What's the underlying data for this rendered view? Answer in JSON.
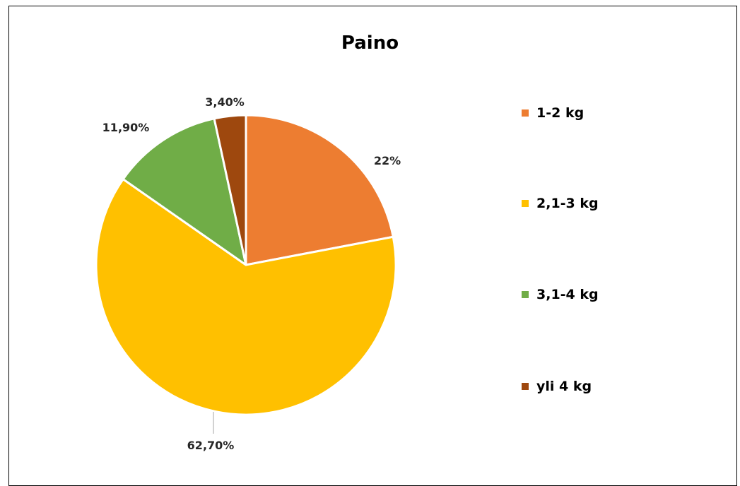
{
  "chart_data": {
    "type": "pie",
    "title": "Paino",
    "slices": [
      {
        "category": "1-2 kg",
        "value": 22,
        "label": "22%",
        "color": "#ED7D31"
      },
      {
        "category": "2,1-3 kg",
        "value": 62.7,
        "label": "62,70%",
        "color": "#FFC000"
      },
      {
        "category": "3,1-4 kg",
        "value": 11.9,
        "label": "11,90%",
        "color": "#70AD47"
      },
      {
        "category": "yli 4 kg",
        "value": 3.4,
        "label": "3,40%",
        "color": "#9E480E"
      }
    ],
    "legend": "right"
  }
}
